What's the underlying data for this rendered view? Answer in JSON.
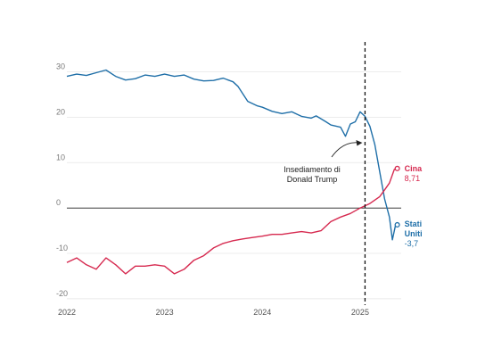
{
  "chart_data": {
    "type": "line",
    "title": "",
    "xlabel": "",
    "ylabel": "",
    "x_ticks": [
      "2022",
      "2023",
      "2024",
      "2025"
    ],
    "y_ticks": [
      "30",
      "20",
      "10",
      "0",
      "-10",
      "-20"
    ],
    "xlim": [
      "2022-01",
      "2025-05"
    ],
    "ylim": [
      -21,
      36
    ],
    "grid": "horizontal",
    "event": {
      "x": "2025-01",
      "label_line1": "Insediamento di",
      "label_line2": "Donald Trump"
    },
    "series": [
      {
        "name": "Stati Uniti",
        "color": "#1f6fa8",
        "end_label": "Stati Uniti",
        "end_label_line1": "Stati",
        "end_label_line2": "Uniti",
        "end_value_label": "-3,7",
        "points": [
          [
            2022.0,
            29
          ],
          [
            2022.1,
            29.5
          ],
          [
            2022.2,
            29.2
          ],
          [
            2022.3,
            29.8
          ],
          [
            2022.4,
            30.4
          ],
          [
            2022.5,
            29.0
          ],
          [
            2022.6,
            28.2
          ],
          [
            2022.7,
            28.5
          ],
          [
            2022.8,
            29.3
          ],
          [
            2022.9,
            29.0
          ],
          [
            2023.0,
            29.5
          ],
          [
            2023.1,
            29.0
          ],
          [
            2023.2,
            29.3
          ],
          [
            2023.3,
            28.4
          ],
          [
            2023.4,
            28.0
          ],
          [
            2023.5,
            28.1
          ],
          [
            2023.6,
            28.6
          ],
          [
            2023.7,
            27.8
          ],
          [
            2023.75,
            26.8
          ],
          [
            2023.85,
            23.5
          ],
          [
            2023.95,
            22.5
          ],
          [
            2024.0,
            22.2
          ],
          [
            2024.1,
            21.3
          ],
          [
            2024.2,
            20.8
          ],
          [
            2024.3,
            21.2
          ],
          [
            2024.4,
            20.2
          ],
          [
            2024.5,
            19.8
          ],
          [
            2024.55,
            20.3
          ],
          [
            2024.65,
            19.0
          ],
          [
            2024.7,
            18.3
          ],
          [
            2024.8,
            17.8
          ],
          [
            2024.85,
            15.8
          ],
          [
            2024.9,
            18.5
          ],
          [
            2024.95,
            19.0
          ],
          [
            2025.0,
            21.2
          ],
          [
            2025.05,
            20.2
          ],
          [
            2025.1,
            18.0
          ],
          [
            2025.15,
            14.0
          ],
          [
            2025.2,
            8.0
          ],
          [
            2025.25,
            2.0
          ],
          [
            2025.3,
            -2.0
          ],
          [
            2025.33,
            -7.0
          ],
          [
            2025.36,
            -4.0
          ],
          [
            2025.38,
            -3.7
          ]
        ]
      },
      {
        "name": "Cina",
        "color": "#d6294f",
        "end_label": "Cina",
        "end_value_label": "8,71",
        "points": [
          [
            2022.0,
            -12.0
          ],
          [
            2022.1,
            -11.0
          ],
          [
            2022.2,
            -12.5
          ],
          [
            2022.3,
            -13.5
          ],
          [
            2022.4,
            -11.0
          ],
          [
            2022.5,
            -12.5
          ],
          [
            2022.6,
            -14.5
          ],
          [
            2022.7,
            -12.8
          ],
          [
            2022.8,
            -12.8
          ],
          [
            2022.9,
            -12.5
          ],
          [
            2023.0,
            -12.8
          ],
          [
            2023.1,
            -14.5
          ],
          [
            2023.2,
            -13.5
          ],
          [
            2023.3,
            -11.5
          ],
          [
            2023.4,
            -10.5
          ],
          [
            2023.5,
            -8.8
          ],
          [
            2023.6,
            -7.8
          ],
          [
            2023.7,
            -7.2
          ],
          [
            2023.8,
            -6.8
          ],
          [
            2023.9,
            -6.5
          ],
          [
            2024.0,
            -6.2
          ],
          [
            2024.1,
            -5.8
          ],
          [
            2024.2,
            -5.8
          ],
          [
            2024.3,
            -5.5
          ],
          [
            2024.4,
            -5.2
          ],
          [
            2024.5,
            -5.5
          ],
          [
            2024.6,
            -5.0
          ],
          [
            2024.7,
            -3.0
          ],
          [
            2024.8,
            -2.0
          ],
          [
            2024.9,
            -1.2
          ],
          [
            2025.0,
            0.0
          ],
          [
            2025.1,
            1.0
          ],
          [
            2025.2,
            2.5
          ],
          [
            2025.25,
            4.0
          ],
          [
            2025.3,
            5.5
          ],
          [
            2025.35,
            8.5
          ],
          [
            2025.38,
            8.71
          ]
        ]
      }
    ]
  }
}
